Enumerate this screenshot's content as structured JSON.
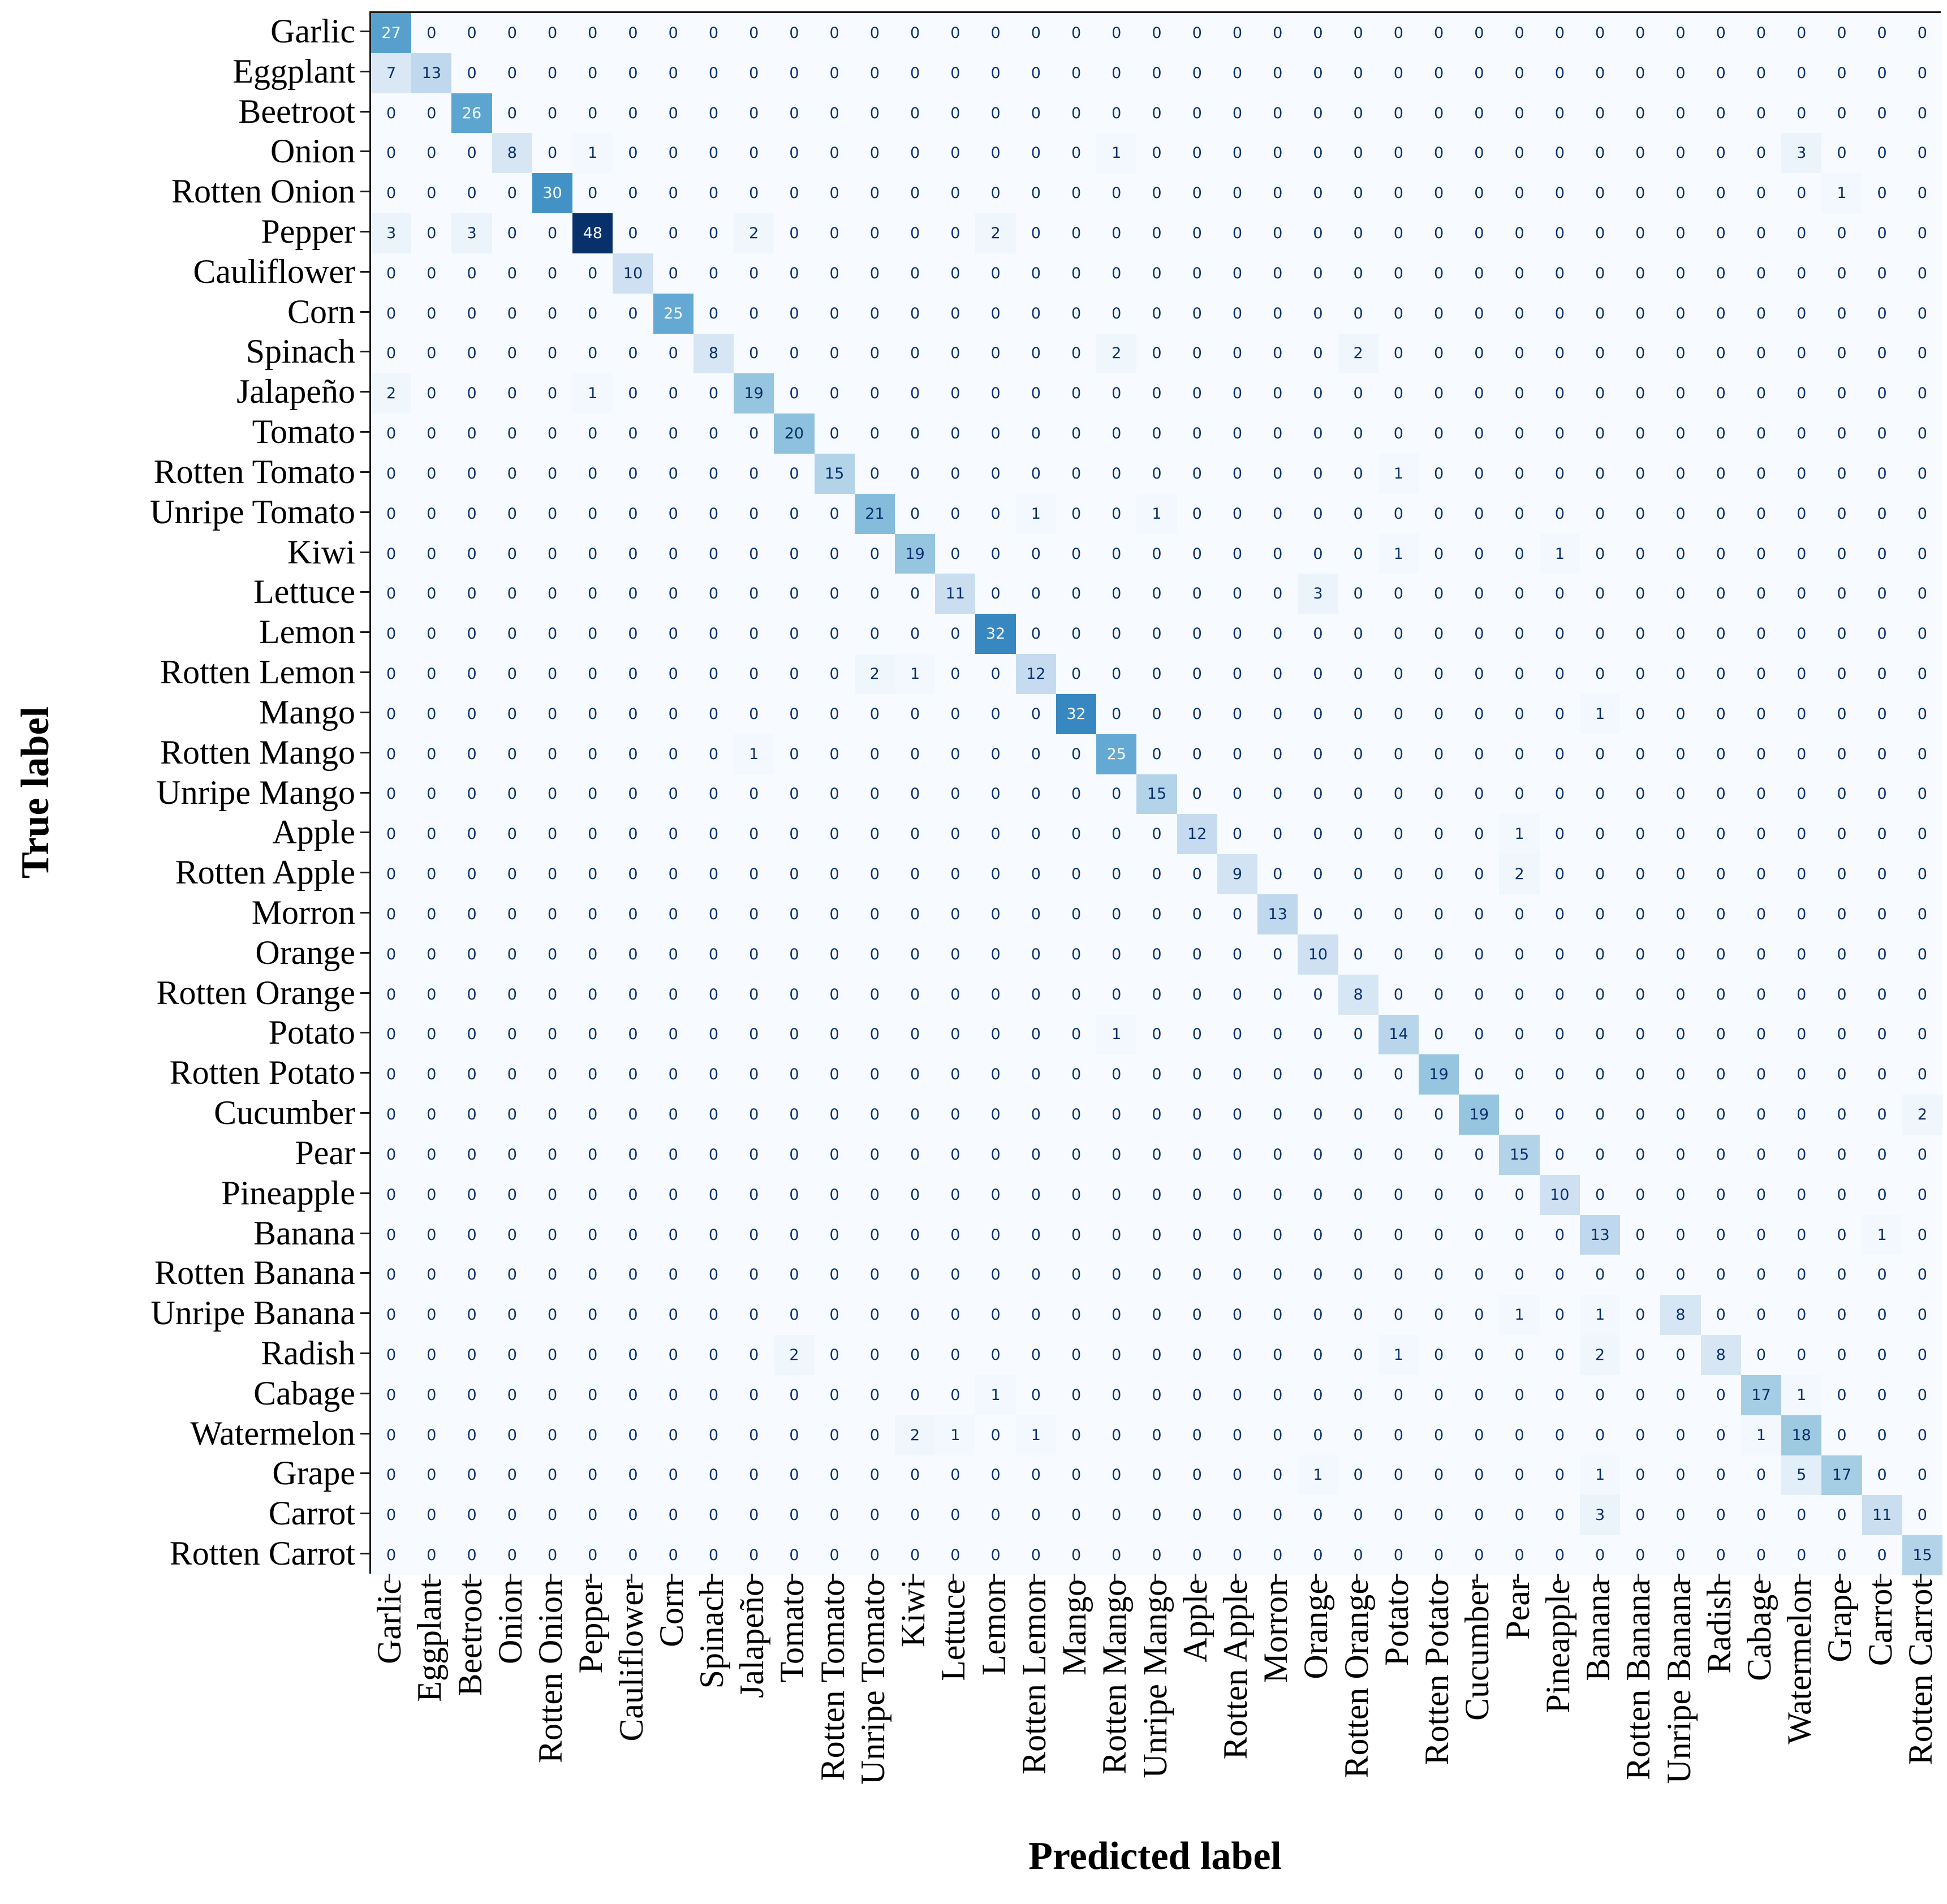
{
  "axes": {
    "x_label": "Predicted label",
    "y_label": "True label"
  },
  "colors": {
    "background": "#ffffff",
    "axis_line": "#1a1a1a",
    "cell_text_dark": "#08306b",
    "cell_text_light": "#f7fbff",
    "cmap_low": "#f7fbff",
    "cmap_high": "#08306b"
  },
  "chart_data": {
    "type": "heatmap",
    "title": "",
    "xlabel": "Predicted label",
    "ylabel": "True label",
    "colormap": "Blues",
    "vmin": 0,
    "vmax": 48,
    "grid": false,
    "legend": "none",
    "categories": [
      "Garlic",
      "Eggplant",
      "Beetroot",
      "Onion",
      "Rotten Onion",
      "Pepper",
      "Cauliflower",
      "Corn",
      "Spinach",
      "Jalapeño",
      "Tomato",
      "Rotten Tomato",
      "Unripe Tomato",
      "Kiwi",
      "Lettuce",
      "Lemon",
      "Rotten Lemon",
      "Mango",
      "Rotten Mango",
      "Unripe Mango",
      "Apple",
      "Rotten Apple",
      "Morron",
      "Orange",
      "Rotten Orange",
      "Potato",
      "Rotten Potato",
      "Cucumber",
      "Pear",
      "Pineapple",
      "Banana",
      "Rotten Banana",
      "Unripe Banana",
      "Radish",
      "Cabage",
      "Watermelon",
      "Grape",
      "Carrot",
      "Rotten Carrot"
    ],
    "matrix": [
      [
        27,
        0,
        0,
        0,
        0,
        0,
        0,
        0,
        0,
        0,
        0,
        0,
        0,
        0,
        0,
        0,
        0,
        0,
        0,
        0,
        0,
        0,
        0,
        0,
        0,
        0,
        0,
        0,
        0,
        0,
        0,
        0,
        0,
        0,
        0,
        0,
        0,
        0,
        0
      ],
      [
        7,
        13,
        0,
        0,
        0,
        0,
        0,
        0,
        0,
        0,
        0,
        0,
        0,
        0,
        0,
        0,
        0,
        0,
        0,
        0,
        0,
        0,
        0,
        0,
        0,
        0,
        0,
        0,
        0,
        0,
        0,
        0,
        0,
        0,
        0,
        0,
        0,
        0,
        0
      ],
      [
        0,
        0,
        26,
        0,
        0,
        0,
        0,
        0,
        0,
        0,
        0,
        0,
        0,
        0,
        0,
        0,
        0,
        0,
        0,
        0,
        0,
        0,
        0,
        0,
        0,
        0,
        0,
        0,
        0,
        0,
        0,
        0,
        0,
        0,
        0,
        0,
        0,
        0,
        0
      ],
      [
        0,
        0,
        0,
        8,
        0,
        1,
        0,
        0,
        0,
        0,
        0,
        0,
        0,
        0,
        0,
        0,
        0,
        0,
        1,
        0,
        0,
        0,
        0,
        0,
        0,
        0,
        0,
        0,
        0,
        0,
        0,
        0,
        0,
        0,
        0,
        3,
        0,
        0,
        0
      ],
      [
        0,
        0,
        0,
        0,
        30,
        0,
        0,
        0,
        0,
        0,
        0,
        0,
        0,
        0,
        0,
        0,
        0,
        0,
        0,
        0,
        0,
        0,
        0,
        0,
        0,
        0,
        0,
        0,
        0,
        0,
        0,
        0,
        0,
        0,
        0,
        0,
        1,
        0,
        0
      ],
      [
        3,
        0,
        3,
        0,
        0,
        48,
        0,
        0,
        0,
        2,
        0,
        0,
        0,
        0,
        0,
        2,
        0,
        0,
        0,
        0,
        0,
        0,
        0,
        0,
        0,
        0,
        0,
        0,
        0,
        0,
        0,
        0,
        0,
        0,
        0,
        0,
        0,
        0,
        0
      ],
      [
        0,
        0,
        0,
        0,
        0,
        0,
        10,
        0,
        0,
        0,
        0,
        0,
        0,
        0,
        0,
        0,
        0,
        0,
        0,
        0,
        0,
        0,
        0,
        0,
        0,
        0,
        0,
        0,
        0,
        0,
        0,
        0,
        0,
        0,
        0,
        0,
        0,
        0,
        0
      ],
      [
        0,
        0,
        0,
        0,
        0,
        0,
        0,
        25,
        0,
        0,
        0,
        0,
        0,
        0,
        0,
        0,
        0,
        0,
        0,
        0,
        0,
        0,
        0,
        0,
        0,
        0,
        0,
        0,
        0,
        0,
        0,
        0,
        0,
        0,
        0,
        0,
        0,
        0,
        0
      ],
      [
        0,
        0,
        0,
        0,
        0,
        0,
        0,
        0,
        8,
        0,
        0,
        0,
        0,
        0,
        0,
        0,
        0,
        0,
        2,
        0,
        0,
        0,
        0,
        0,
        2,
        0,
        0,
        0,
        0,
        0,
        0,
        0,
        0,
        0,
        0,
        0,
        0,
        0,
        0
      ],
      [
        2,
        0,
        0,
        0,
        0,
        1,
        0,
        0,
        0,
        19,
        0,
        0,
        0,
        0,
        0,
        0,
        0,
        0,
        0,
        0,
        0,
        0,
        0,
        0,
        0,
        0,
        0,
        0,
        0,
        0,
        0,
        0,
        0,
        0,
        0,
        0,
        0,
        0,
        0
      ],
      [
        0,
        0,
        0,
        0,
        0,
        0,
        0,
        0,
        0,
        0,
        20,
        0,
        0,
        0,
        0,
        0,
        0,
        0,
        0,
        0,
        0,
        0,
        0,
        0,
        0,
        0,
        0,
        0,
        0,
        0,
        0,
        0,
        0,
        0,
        0,
        0,
        0,
        0,
        0
      ],
      [
        0,
        0,
        0,
        0,
        0,
        0,
        0,
        0,
        0,
        0,
        0,
        15,
        0,
        0,
        0,
        0,
        0,
        0,
        0,
        0,
        0,
        0,
        0,
        0,
        0,
        1,
        0,
        0,
        0,
        0,
        0,
        0,
        0,
        0,
        0,
        0,
        0,
        0,
        0
      ],
      [
        0,
        0,
        0,
        0,
        0,
        0,
        0,
        0,
        0,
        0,
        0,
        0,
        21,
        0,
        0,
        0,
        1,
        0,
        0,
        1,
        0,
        0,
        0,
        0,
        0,
        0,
        0,
        0,
        0,
        0,
        0,
        0,
        0,
        0,
        0,
        0,
        0,
        0,
        0
      ],
      [
        0,
        0,
        0,
        0,
        0,
        0,
        0,
        0,
        0,
        0,
        0,
        0,
        0,
        19,
        0,
        0,
        0,
        0,
        0,
        0,
        0,
        0,
        0,
        0,
        0,
        1,
        0,
        0,
        0,
        1,
        0,
        0,
        0,
        0,
        0,
        0,
        0,
        0,
        0
      ],
      [
        0,
        0,
        0,
        0,
        0,
        0,
        0,
        0,
        0,
        0,
        0,
        0,
        0,
        0,
        11,
        0,
        0,
        0,
        0,
        0,
        0,
        0,
        0,
        3,
        0,
        0,
        0,
        0,
        0,
        0,
        0,
        0,
        0,
        0,
        0,
        0,
        0,
        0,
        0
      ],
      [
        0,
        0,
        0,
        0,
        0,
        0,
        0,
        0,
        0,
        0,
        0,
        0,
        0,
        0,
        0,
        32,
        0,
        0,
        0,
        0,
        0,
        0,
        0,
        0,
        0,
        0,
        0,
        0,
        0,
        0,
        0,
        0,
        0,
        0,
        0,
        0,
        0,
        0,
        0
      ],
      [
        0,
        0,
        0,
        0,
        0,
        0,
        0,
        0,
        0,
        0,
        0,
        0,
        2,
        1,
        0,
        0,
        12,
        0,
        0,
        0,
        0,
        0,
        0,
        0,
        0,
        0,
        0,
        0,
        0,
        0,
        0,
        0,
        0,
        0,
        0,
        0,
        0,
        0,
        0
      ],
      [
        0,
        0,
        0,
        0,
        0,
        0,
        0,
        0,
        0,
        0,
        0,
        0,
        0,
        0,
        0,
        0,
        0,
        32,
        0,
        0,
        0,
        0,
        0,
        0,
        0,
        0,
        0,
        0,
        0,
        0,
        1,
        0,
        0,
        0,
        0,
        0,
        0,
        0,
        0
      ],
      [
        0,
        0,
        0,
        0,
        0,
        0,
        0,
        0,
        0,
        1,
        0,
        0,
        0,
        0,
        0,
        0,
        0,
        0,
        25,
        0,
        0,
        0,
        0,
        0,
        0,
        0,
        0,
        0,
        0,
        0,
        0,
        0,
        0,
        0,
        0,
        0,
        0,
        0,
        0
      ],
      [
        0,
        0,
        0,
        0,
        0,
        0,
        0,
        0,
        0,
        0,
        0,
        0,
        0,
        0,
        0,
        0,
        0,
        0,
        0,
        15,
        0,
        0,
        0,
        0,
        0,
        0,
        0,
        0,
        0,
        0,
        0,
        0,
        0,
        0,
        0,
        0,
        0,
        0,
        0
      ],
      [
        0,
        0,
        0,
        0,
        0,
        0,
        0,
        0,
        0,
        0,
        0,
        0,
        0,
        0,
        0,
        0,
        0,
        0,
        0,
        0,
        12,
        0,
        0,
        0,
        0,
        0,
        0,
        0,
        1,
        0,
        0,
        0,
        0,
        0,
        0,
        0,
        0,
        0,
        0
      ],
      [
        0,
        0,
        0,
        0,
        0,
        0,
        0,
        0,
        0,
        0,
        0,
        0,
        0,
        0,
        0,
        0,
        0,
        0,
        0,
        0,
        0,
        9,
        0,
        0,
        0,
        0,
        0,
        0,
        2,
        0,
        0,
        0,
        0,
        0,
        0,
        0,
        0,
        0,
        0
      ],
      [
        0,
        0,
        0,
        0,
        0,
        0,
        0,
        0,
        0,
        0,
        0,
        0,
        0,
        0,
        0,
        0,
        0,
        0,
        0,
        0,
        0,
        0,
        13,
        0,
        0,
        0,
        0,
        0,
        0,
        0,
        0,
        0,
        0,
        0,
        0,
        0,
        0,
        0,
        0
      ],
      [
        0,
        0,
        0,
        0,
        0,
        0,
        0,
        0,
        0,
        0,
        0,
        0,
        0,
        0,
        0,
        0,
        0,
        0,
        0,
        0,
        0,
        0,
        0,
        10,
        0,
        0,
        0,
        0,
        0,
        0,
        0,
        0,
        0,
        0,
        0,
        0,
        0,
        0,
        0
      ],
      [
        0,
        0,
        0,
        0,
        0,
        0,
        0,
        0,
        0,
        0,
        0,
        0,
        0,
        0,
        0,
        0,
        0,
        0,
        0,
        0,
        0,
        0,
        0,
        0,
        8,
        0,
        0,
        0,
        0,
        0,
        0,
        0,
        0,
        0,
        0,
        0,
        0,
        0,
        0
      ],
      [
        0,
        0,
        0,
        0,
        0,
        0,
        0,
        0,
        0,
        0,
        0,
        0,
        0,
        0,
        0,
        0,
        0,
        0,
        1,
        0,
        0,
        0,
        0,
        0,
        0,
        14,
        0,
        0,
        0,
        0,
        0,
        0,
        0,
        0,
        0,
        0,
        0,
        0,
        0
      ],
      [
        0,
        0,
        0,
        0,
        0,
        0,
        0,
        0,
        0,
        0,
        0,
        0,
        0,
        0,
        0,
        0,
        0,
        0,
        0,
        0,
        0,
        0,
        0,
        0,
        0,
        0,
        19,
        0,
        0,
        0,
        0,
        0,
        0,
        0,
        0,
        0,
        0,
        0,
        0
      ],
      [
        0,
        0,
        0,
        0,
        0,
        0,
        0,
        0,
        0,
        0,
        0,
        0,
        0,
        0,
        0,
        0,
        0,
        0,
        0,
        0,
        0,
        0,
        0,
        0,
        0,
        0,
        0,
        19,
        0,
        0,
        0,
        0,
        0,
        0,
        0,
        0,
        0,
        0,
        2
      ],
      [
        0,
        0,
        0,
        0,
        0,
        0,
        0,
        0,
        0,
        0,
        0,
        0,
        0,
        0,
        0,
        0,
        0,
        0,
        0,
        0,
        0,
        0,
        0,
        0,
        0,
        0,
        0,
        0,
        15,
        0,
        0,
        0,
        0,
        0,
        0,
        0,
        0,
        0,
        0
      ],
      [
        0,
        0,
        0,
        0,
        0,
        0,
        0,
        0,
        0,
        0,
        0,
        0,
        0,
        0,
        0,
        0,
        0,
        0,
        0,
        0,
        0,
        0,
        0,
        0,
        0,
        0,
        0,
        0,
        0,
        10,
        0,
        0,
        0,
        0,
        0,
        0,
        0,
        0,
        0
      ],
      [
        0,
        0,
        0,
        0,
        0,
        0,
        0,
        0,
        0,
        0,
        0,
        0,
        0,
        0,
        0,
        0,
        0,
        0,
        0,
        0,
        0,
        0,
        0,
        0,
        0,
        0,
        0,
        0,
        0,
        0,
        13,
        0,
        0,
        0,
        0,
        0,
        0,
        1,
        0
      ],
      [
        0,
        0,
        0,
        0,
        0,
        0,
        0,
        0,
        0,
        0,
        0,
        0,
        0,
        0,
        0,
        0,
        0,
        0,
        0,
        0,
        0,
        0,
        0,
        0,
        0,
        0,
        0,
        0,
        0,
        0,
        0,
        0,
        0,
        0,
        0,
        0,
        0,
        0,
        0
      ],
      [
        0,
        0,
        0,
        0,
        0,
        0,
        0,
        0,
        0,
        0,
        0,
        0,
        0,
        0,
        0,
        0,
        0,
        0,
        0,
        0,
        0,
        0,
        0,
        0,
        0,
        0,
        0,
        0,
        1,
        0,
        1,
        0,
        8,
        0,
        0,
        0,
        0,
        0,
        0
      ],
      [
        0,
        0,
        0,
        0,
        0,
        0,
        0,
        0,
        0,
        0,
        2,
        0,
        0,
        0,
        0,
        0,
        0,
        0,
        0,
        0,
        0,
        0,
        0,
        0,
        0,
        1,
        0,
        0,
        0,
        0,
        2,
        0,
        0,
        8,
        0,
        0,
        0,
        0,
        0
      ],
      [
        0,
        0,
        0,
        0,
        0,
        0,
        0,
        0,
        0,
        0,
        0,
        0,
        0,
        0,
        0,
        1,
        0,
        0,
        0,
        0,
        0,
        0,
        0,
        0,
        0,
        0,
        0,
        0,
        0,
        0,
        0,
        0,
        0,
        0,
        17,
        1,
        0,
        0,
        0
      ],
      [
        0,
        0,
        0,
        0,
        0,
        0,
        0,
        0,
        0,
        0,
        0,
        0,
        0,
        2,
        1,
        0,
        1,
        0,
        0,
        0,
        0,
        0,
        0,
        0,
        0,
        0,
        0,
        0,
        0,
        0,
        0,
        0,
        0,
        0,
        1,
        18,
        0,
        0,
        0
      ],
      [
        0,
        0,
        0,
        0,
        0,
        0,
        0,
        0,
        0,
        0,
        0,
        0,
        0,
        0,
        0,
        0,
        0,
        0,
        0,
        0,
        0,
        0,
        0,
        1,
        0,
        0,
        0,
        0,
        0,
        0,
        1,
        0,
        0,
        0,
        0,
        5,
        17,
        0,
        0
      ],
      [
        0,
        0,
        0,
        0,
        0,
        0,
        0,
        0,
        0,
        0,
        0,
        0,
        0,
        0,
        0,
        0,
        0,
        0,
        0,
        0,
        0,
        0,
        0,
        0,
        0,
        0,
        0,
        0,
        0,
        0,
        3,
        0,
        0,
        0,
        0,
        0,
        0,
        11,
        0
      ],
      [
        0,
        0,
        0,
        0,
        0,
        0,
        0,
        0,
        0,
        0,
        0,
        0,
        0,
        0,
        0,
        0,
        0,
        0,
        0,
        0,
        0,
        0,
        0,
        0,
        0,
        0,
        0,
        0,
        0,
        0,
        0,
        0,
        0,
        0,
        0,
        0,
        0,
        0,
        15
      ]
    ],
    "blues_anchors": [
      [
        0.0,
        247,
        251,
        255
      ],
      [
        0.125,
        222,
        235,
        247
      ],
      [
        0.25,
        198,
        219,
        239
      ],
      [
        0.375,
        158,
        202,
        225
      ],
      [
        0.5,
        107,
        174,
        214
      ],
      [
        0.625,
        66,
        146,
        198
      ],
      [
        0.75,
        33,
        113,
        181
      ],
      [
        0.875,
        8,
        81,
        156
      ],
      [
        1.0,
        8,
        48,
        107
      ]
    ]
  }
}
